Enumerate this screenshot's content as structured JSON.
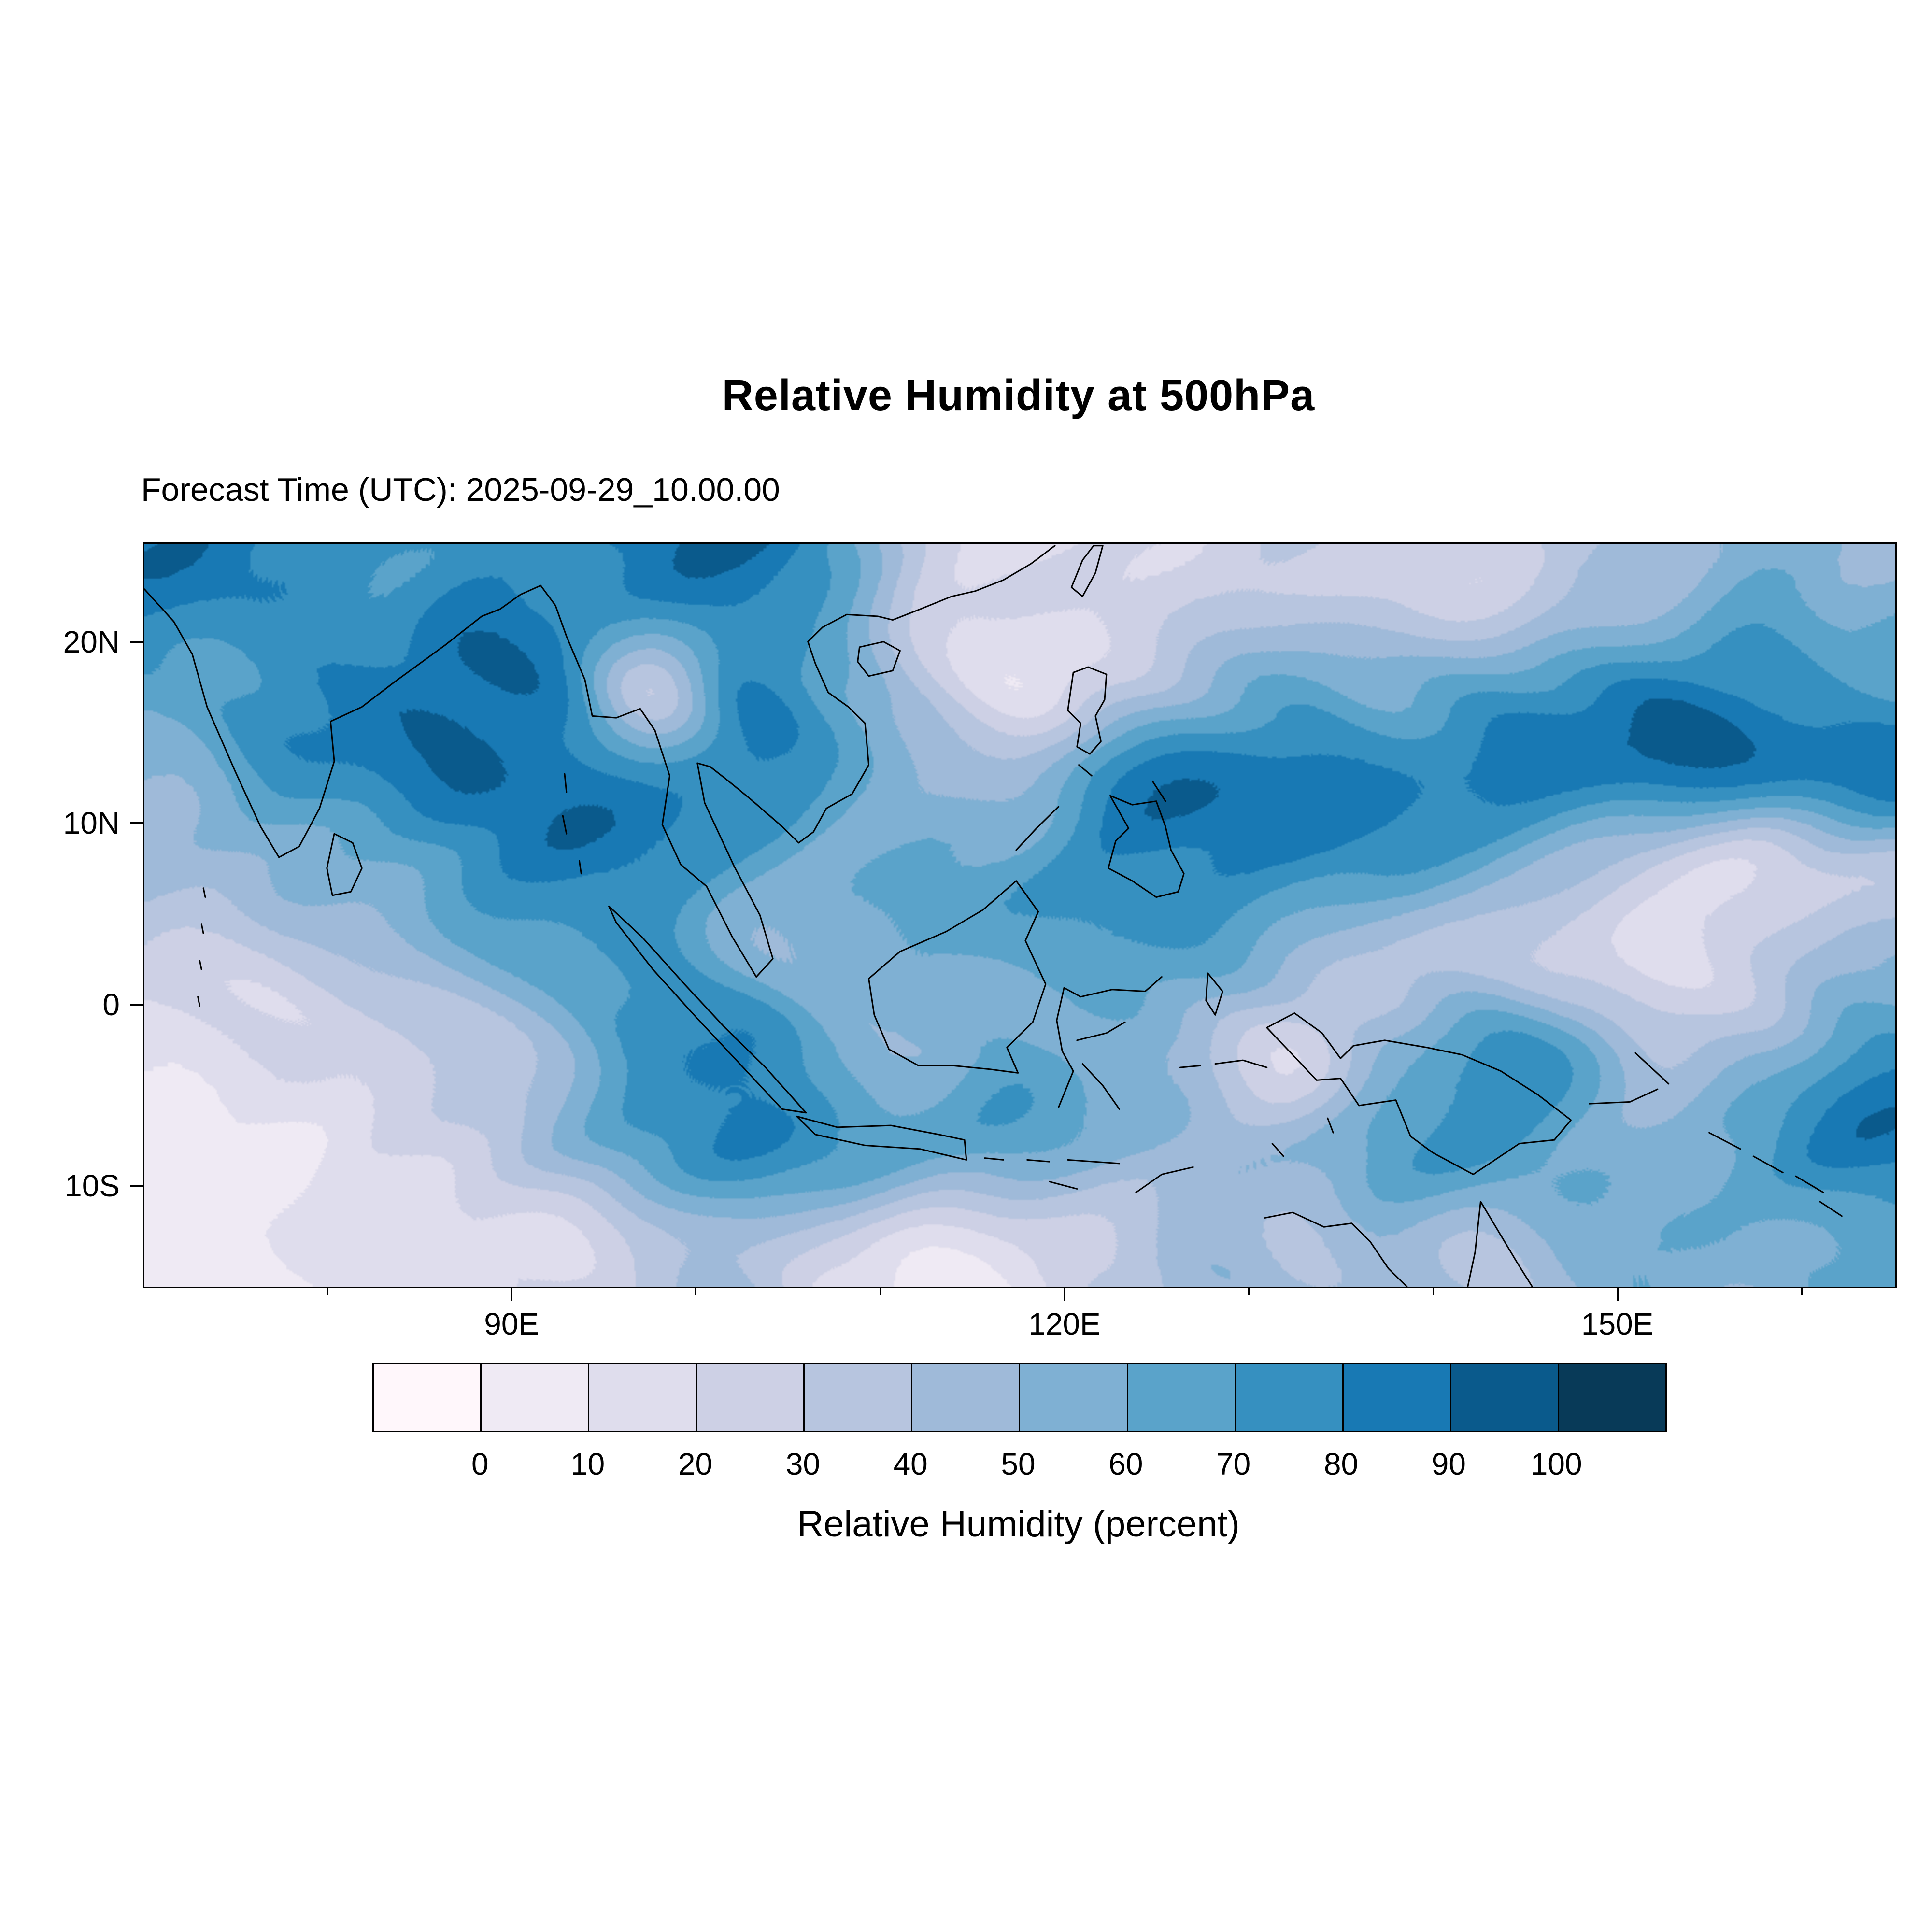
{
  "figure": {
    "title": "Relative Humidity at 500hPa",
    "forecast_time_label": "Forecast Time (UTC): 2025-09-29_10.00.00"
  },
  "axes": {
    "y_ticks": [
      {
        "label": "20N",
        "lat": 20
      },
      {
        "label": "10N",
        "lat": 10
      },
      {
        "label": "0",
        "lat": 0
      },
      {
        "label": "10S",
        "lat": -10
      }
    ],
    "x_ticks": [
      {
        "label": "90E",
        "lon": 90
      },
      {
        "label": "120E",
        "lon": 120
      },
      {
        "label": "150E",
        "lon": 150
      }
    ],
    "x_minor_ticks_lon": [
      80,
      100,
      110,
      130,
      140,
      160
    ]
  },
  "colorbar": {
    "label": "Relative Humidity (percent)",
    "tick_labels": [
      "0",
      "10",
      "20",
      "30",
      "40",
      "50",
      "60",
      "70",
      "80",
      "90",
      "100"
    ],
    "colors": [
      "#fff7fb",
      "#efeaf4",
      "#dfdded",
      "#cdd0e5",
      "#b7c5df",
      "#9fbad9",
      "#7fb0d3",
      "#5aa3ca",
      "#3690c0",
      "#1879b4",
      "#0a5a8c",
      "#083a58"
    ]
  },
  "chart_data": {
    "type": "heatmap",
    "title": "Relative Humidity at 500hPa",
    "subtitle": "Forecast Time (UTC): 2025-09-29_10.00.00",
    "colorbar_label": "Relative Humidity (percent)",
    "levels": [
      0,
      10,
      20,
      30,
      40,
      50,
      60,
      70,
      80,
      90,
      100
    ],
    "palette": [
      "#fff7fb",
      "#efeaf4",
      "#dfdded",
      "#cdd0e5",
      "#b7c5df",
      "#9fbad9",
      "#7fb0d3",
      "#5aa3ca",
      "#3690c0",
      "#1879b4",
      "#0a5a8c",
      "#083a58"
    ],
    "x_ticks": [
      "90E",
      "120E",
      "150E"
    ],
    "y_ticks": [
      "20N",
      "10N",
      "0",
      "10S"
    ],
    "lon_range": [
      70,
      165
    ],
    "lat_range": [
      -15.5,
      25.5
    ],
    "grid": {
      "note": "Approximate relative humidity (%) estimated visually from the filled contours on a 5-degree grid; rows run north to south, columns west to east.",
      "lat_centers": [
        22.5,
        17.5,
        12.5,
        7.5,
        2.5,
        -2.5,
        -7.5,
        -12.5
      ],
      "lon_centers": [
        72.5,
        77.5,
        82.5,
        87.5,
        92.5,
        97.5,
        102.5,
        107.5,
        112.5,
        117.5,
        122.5,
        127.5,
        132.5,
        137.5,
        142.5,
        147.5,
        152.5,
        157.5,
        162.5
      ],
      "values": [
        [
          85,
          75,
          70,
          80,
          75,
          85,
          90,
          70,
          25,
          15,
          20,
          25,
          35,
          25,
          20,
          35,
          45,
          60,
          50
        ],
        [
          65,
          80,
          85,
          90,
          85,
          20,
          80,
          60,
          30,
          10,
          30,
          50,
          60,
          50,
          65,
          75,
          85,
          80,
          70
        ],
        [
          55,
          70,
          80,
          90,
          90,
          75,
          85,
          70,
          55,
          40,
          80,
          85,
          90,
          85,
          90,
          85,
          90,
          85,
          90
        ],
        [
          40,
          55,
          60,
          75,
          85,
          80,
          65,
          55,
          60,
          65,
          80,
          85,
          80,
          70,
          55,
          40,
          25,
          15,
          30
        ],
        [
          30,
          30,
          40,
          50,
          65,
          75,
          55,
          50,
          65,
          60,
          70,
          60,
          45,
          30,
          40,
          25,
          15,
          25,
          50
        ],
        [
          10,
          15,
          25,
          35,
          50,
          75,
          85,
          55,
          50,
          60,
          55,
          40,
          20,
          55,
          75,
          65,
          35,
          50,
          75
        ],
        [
          5,
          10,
          20,
          25,
          45,
          70,
          85,
          80,
          65,
          70,
          55,
          50,
          45,
          65,
          75,
          65,
          55,
          70,
          85
        ],
        [
          5,
          5,
          10,
          15,
          20,
          35,
          45,
          20,
          10,
          15,
          30,
          45,
          40,
          50,
          40,
          50,
          60,
          50,
          65
        ]
      ]
    }
  }
}
